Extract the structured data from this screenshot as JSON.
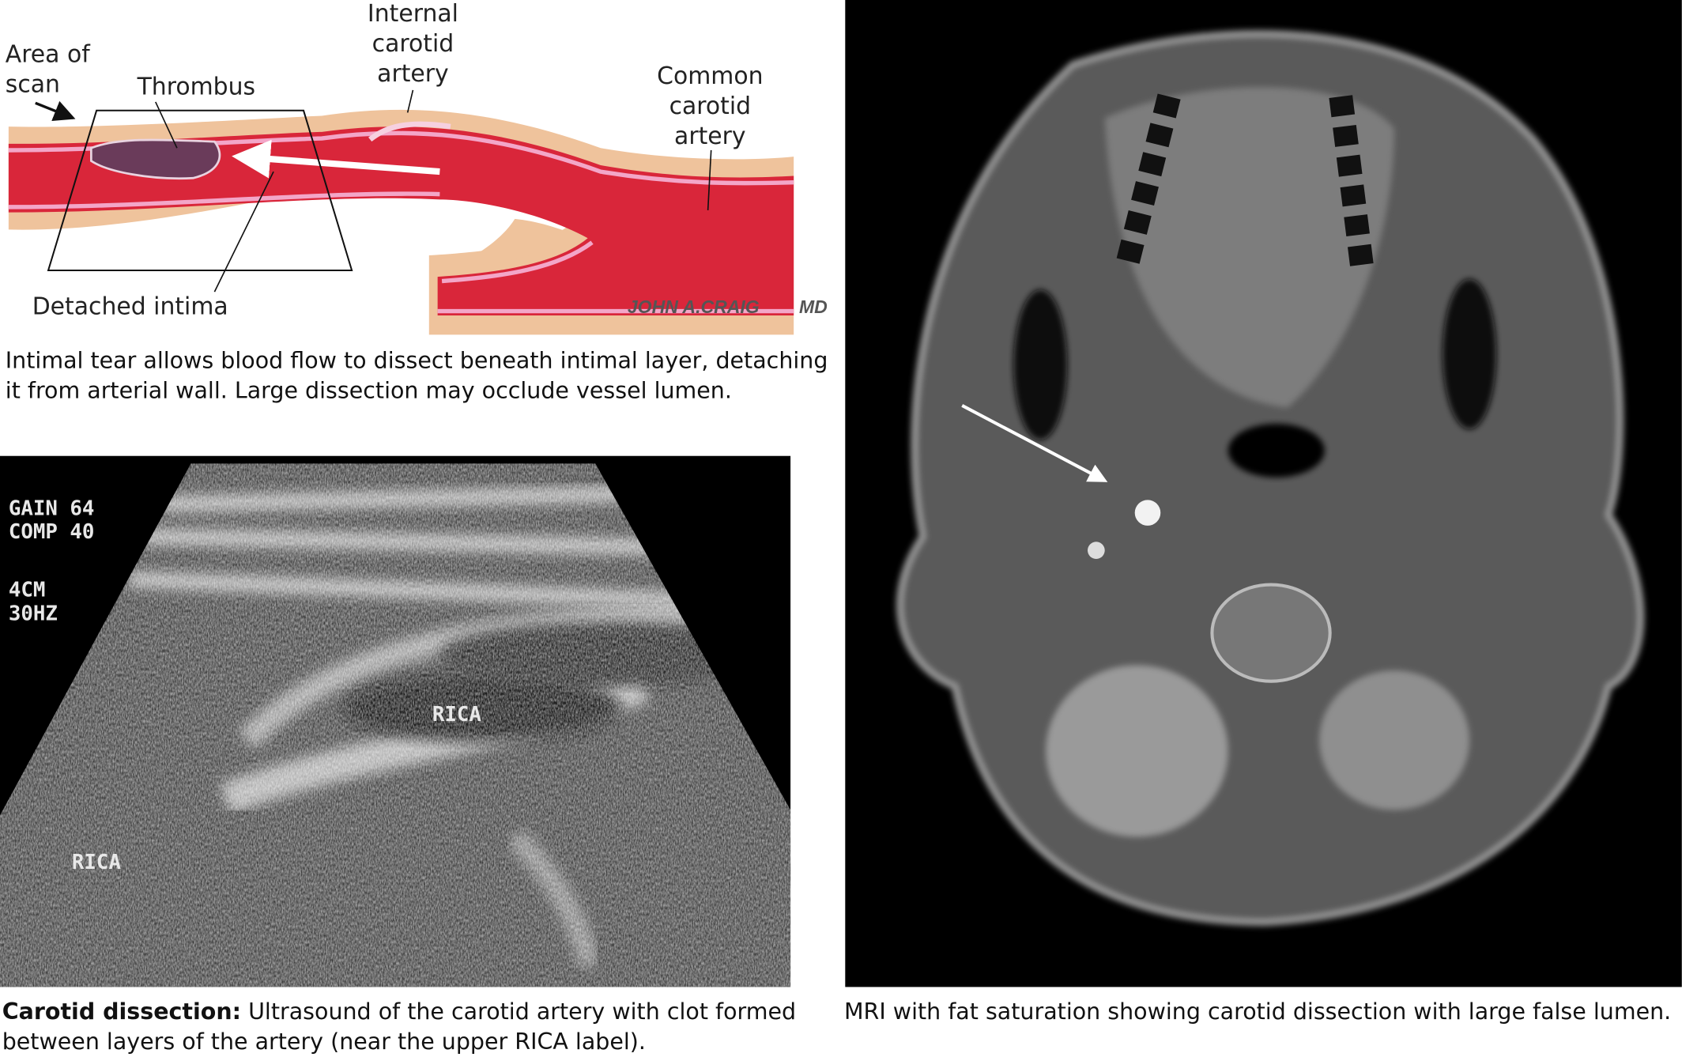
{
  "illustration": {
    "labels": {
      "area_of_scan": [
        "Area of",
        "scan"
      ],
      "thrombus": "Thrombus",
      "internal_carotid": [
        "Internal",
        "carotid",
        "artery"
      ],
      "common_carotid": [
        "Common",
        "carotid",
        "artery"
      ],
      "detached_intima": "Detached intima"
    },
    "signature": {
      "name": "JOHN A.CRAIG",
      "suffix": "MD"
    },
    "caption": [
      "Intimal tear allows blood flow to dissect beneath intimal layer, detaching",
      "it from arterial wall. Large dissection may occlude vessel lumen."
    ]
  },
  "ultrasound": {
    "overlay": [
      "GAIN 64",
      "COMP 40",
      "4CM",
      "30HZ"
    ],
    "labels": [
      "RICA",
      "RICA"
    ],
    "caption_bold": "Carotid dissection:",
    "caption": [
      " Ultrasound of the carotid artery with clot formed",
      "between layers of the artery (near the upper RICA label)."
    ]
  },
  "mri": {
    "caption": "MRI with fat saturation showing carotid dissection with large false lumen."
  }
}
